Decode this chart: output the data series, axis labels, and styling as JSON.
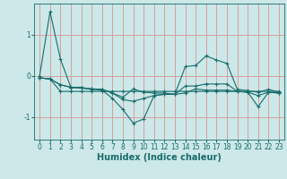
{
  "background_color": "#cce8e8",
  "grid_color": "#d8a0a0",
  "line_color": "#1a6b6b",
  "xlabel": "Humidex (Indice chaleur)",
  "xlabel_fontsize": 7,
  "tick_fontsize": 5.5,
  "yticks": [
    -1,
    0,
    1
  ],
  "xlim": [
    -0.5,
    23.5
  ],
  "ylim": [
    -1.55,
    1.75
  ],
  "series": [
    [
      0.0,
      1.55,
      0.4,
      -0.28,
      -0.28,
      -0.33,
      -0.35,
      -0.55,
      -0.82,
      -1.15,
      -1.05,
      -0.48,
      -0.45,
      -0.45,
      0.22,
      0.25,
      0.48,
      0.38,
      0.3,
      -0.33,
      -0.36,
      -0.4,
      -0.33,
      -0.4
    ],
    [
      -0.05,
      -0.08,
      -0.38,
      -0.38,
      -0.38,
      -0.38,
      -0.38,
      -0.38,
      -0.38,
      -0.38,
      -0.38,
      -0.38,
      -0.38,
      -0.38,
      -0.38,
      -0.38,
      -0.38,
      -0.38,
      -0.38,
      -0.38,
      -0.38,
      -0.38,
      -0.38,
      -0.38
    ],
    [
      -0.05,
      -0.08,
      -0.22,
      -0.28,
      -0.3,
      -0.32,
      -0.33,
      -0.42,
      -0.52,
      -0.32,
      -0.4,
      -0.42,
      -0.42,
      -0.45,
      -0.42,
      -0.32,
      -0.35,
      -0.35,
      -0.35,
      -0.38,
      -0.4,
      -0.75,
      -0.4,
      -0.42
    ],
    [
      -0.05,
      -0.08,
      -0.22,
      -0.28,
      -0.3,
      -0.32,
      -0.33,
      -0.42,
      -0.58,
      -0.62,
      -0.55,
      -0.48,
      -0.45,
      -0.45,
      -0.25,
      -0.25,
      -0.2,
      -0.2,
      -0.2,
      -0.38,
      -0.4,
      -0.48,
      -0.4,
      -0.42
    ]
  ]
}
